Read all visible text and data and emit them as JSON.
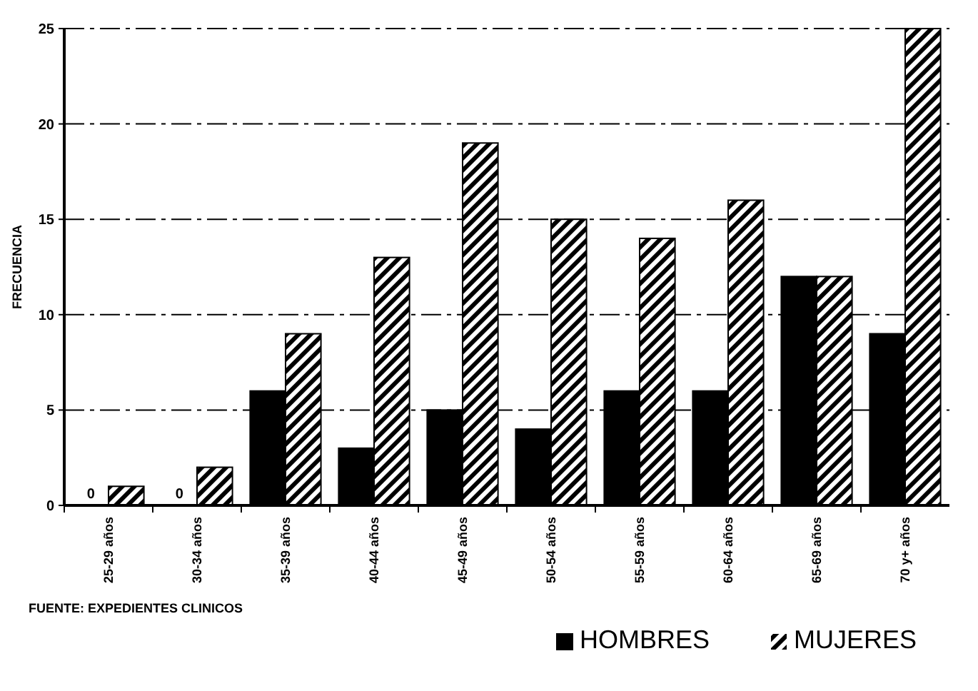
{
  "chart_data": {
    "type": "bar",
    "ylabel": "FRECUENCIA",
    "categories": [
      "25-29 años",
      "30-34 años",
      "35-39 años",
      "40-44 años",
      "45-49 años",
      "50-54 años",
      "55-59 años",
      "60-64 años",
      "65-69 años",
      "70 y+ años"
    ],
    "series": [
      {
        "name": "HOMBRES",
        "color": "#000000",
        "values": [
          0,
          0,
          6,
          3,
          5,
          4,
          6,
          6,
          12,
          9
        ],
        "value_labels": [
          "0",
          "0",
          null,
          null,
          null,
          null,
          null,
          null,
          null,
          null
        ]
      },
      {
        "name": "MUJERES",
        "color": "#000000",
        "values": [
          1,
          2,
          9,
          13,
          19,
          15,
          14,
          16,
          12,
          25
        ]
      }
    ],
    "ylim": [
      0,
      25
    ],
    "yticks": [
      0,
      5,
      10,
      15,
      20,
      25
    ],
    "grid": "y",
    "legend": "bottom right",
    "annotations": [
      "FUENTE: EXPEDIENTES CLINICOS"
    ]
  }
}
